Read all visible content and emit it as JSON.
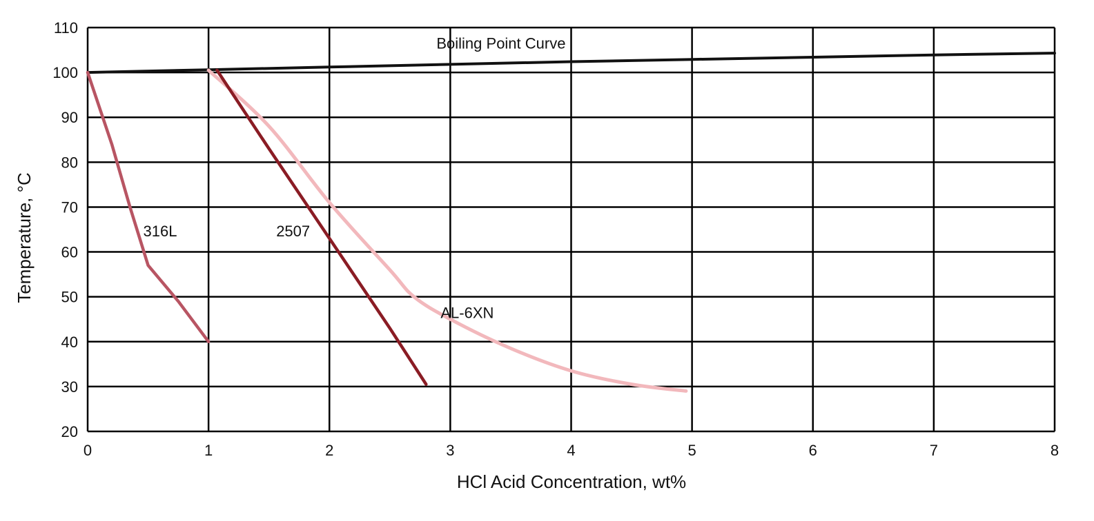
{
  "chart_data": {
    "type": "line",
    "title": "",
    "xlabel": "HCl Acid Concentration, wt%",
    "ylabel": "Temperature, °C",
    "xlim": [
      0,
      8
    ],
    "ylim": [
      20,
      110
    ],
    "xticks": [
      0,
      1,
      2,
      3,
      4,
      5,
      6,
      7,
      8
    ],
    "yticks": [
      20,
      30,
      40,
      50,
      60,
      70,
      80,
      90,
      100,
      110
    ],
    "grid": true,
    "series": [
      {
        "name": "Boiling Point Curve",
        "color": "#111111",
        "x": [
          0,
          1,
          2,
          3,
          4,
          5,
          6,
          7,
          8
        ],
        "y": [
          100,
          100.6,
          101.2,
          101.8,
          102.4,
          102.9,
          103.4,
          103.9,
          104.3
        ]
      },
      {
        "name": "316L",
        "color": "#b85563",
        "x": [
          0,
          0.2,
          0.35,
          0.5,
          0.75,
          1.0
        ],
        "y": [
          100,
          84,
          70,
          57,
          49,
          40
        ]
      },
      {
        "name": "2507",
        "color": "#8a1c24",
        "x": [
          1.07,
          1.5,
          2.0,
          2.5,
          2.8
        ],
        "y": [
          100.5,
          83,
          63,
          43,
          30.5
        ]
      },
      {
        "name": "AL-6XN",
        "color": "#f2b8bc",
        "x": [
          1.0,
          1.5,
          2.0,
          2.5,
          2.7,
          3.0,
          3.5,
          4.0,
          4.5,
          4.95
        ],
        "y": [
          100.5,
          88,
          71,
          56,
          50,
          45,
          38.5,
          33.5,
          30.5,
          29
        ]
      }
    ]
  }
}
